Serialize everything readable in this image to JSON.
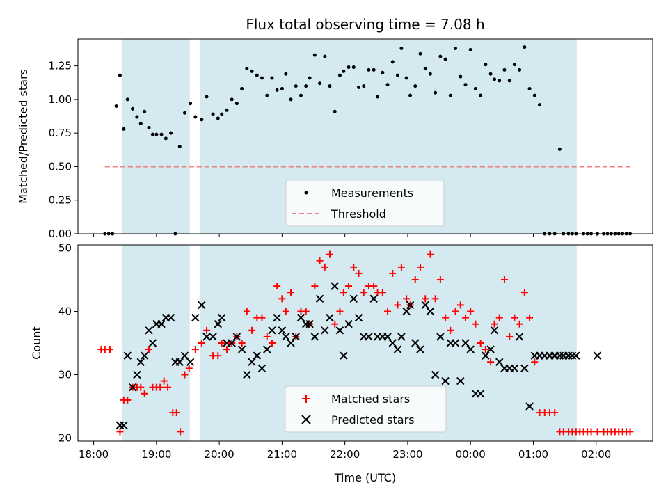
{
  "chart_data": [
    {
      "type": "scatter",
      "title": "Flux total observing time = 7.08 h",
      "xlabel": "",
      "ylabel": "Matched/Predicted stars",
      "xlim": [
        -0.25,
        8.9
      ],
      "ylim": [
        0,
        1.45
      ],
      "yticks": [
        0.0,
        0.25,
        0.5,
        0.75,
        1.0,
        1.25
      ],
      "ytick_labels": [
        "0.00",
        "0.25",
        "0.50",
        "0.75",
        "1.00",
        "1.25"
      ],
      "grid": false,
      "legend_placement": "lower center",
      "highlight_spans": [
        [
          0.45,
          1.53
        ],
        [
          1.69,
          7.69
        ]
      ],
      "highlight_color": "#d4eaf0",
      "series": [
        {
          "name": "Measurements",
          "kind": "dot",
          "color": "#000000",
          "x": [
            0.18,
            0.24,
            0.3,
            0.36,
            0.42,
            0.48,
            0.54,
            0.62,
            0.69,
            0.75,
            0.81,
            0.88,
            0.94,
            1.0,
            1.08,
            1.15,
            1.23,
            1.3,
            1.37,
            1.45,
            1.54,
            1.62,
            1.72,
            1.8,
            1.9,
            1.98,
            2.04,
            2.12,
            2.2,
            2.28,
            2.36,
            2.44,
            2.52,
            2.6,
            2.68,
            2.76,
            2.84,
            2.92,
            3.0,
            3.06,
            3.14,
            3.22,
            3.3,
            3.38,
            3.44,
            3.52,
            3.6,
            3.68,
            3.76,
            3.84,
            3.92,
            3.98,
            4.06,
            4.14,
            4.22,
            4.3,
            4.38,
            4.46,
            4.52,
            4.6,
            4.68,
            4.76,
            4.84,
            4.9,
            4.98,
            5.04,
            5.12,
            5.2,
            5.28,
            5.36,
            5.44,
            5.52,
            5.6,
            5.68,
            5.76,
            5.84,
            5.92,
            6.0,
            6.08,
            6.16,
            6.24,
            6.32,
            6.38,
            6.46,
            6.54,
            6.62,
            6.7,
            6.78,
            6.86,
            6.94,
            7.02,
            7.1,
            7.18,
            7.26,
            7.34,
            7.42,
            7.48,
            7.56,
            7.62,
            7.68,
            7.8,
            7.86,
            7.92,
            8.02,
            8.12,
            8.18,
            8.24,
            8.3,
            8.36,
            8.42,
            8.48,
            8.54
          ],
          "y": [
            0.0,
            0.0,
            0.0,
            0.95,
            1.18,
            0.78,
            1.0,
            0.93,
            0.87,
            0.82,
            0.91,
            0.79,
            0.74,
            0.74,
            0.74,
            0.71,
            0.75,
            0.0,
            0.65,
            0.9,
            0.97,
            0.87,
            0.85,
            1.02,
            0.89,
            0.86,
            0.89,
            0.92,
            1.0,
            0.97,
            1.08,
            1.23,
            1.21,
            1.18,
            1.16,
            1.03,
            1.16,
            1.07,
            1.08,
            1.19,
            1.0,
            1.1,
            1.03,
            1.1,
            1.16,
            1.33,
            1.12,
            1.32,
            1.1,
            0.91,
            1.18,
            1.21,
            1.24,
            1.24,
            1.09,
            1.1,
            1.22,
            1.22,
            1.02,
            1.2,
            1.11,
            1.28,
            1.18,
            1.38,
            1.16,
            1.03,
            1.1,
            1.34,
            1.23,
            1.19,
            1.05,
            1.32,
            1.3,
            1.03,
            1.38,
            1.17,
            1.11,
            1.37,
            1.08,
            1.03,
            1.26,
            1.19,
            1.15,
            1.14,
            1.22,
            1.14,
            1.26,
            1.22,
            1.39,
            1.08,
            1.03,
            0.96,
            0.0,
            0.0,
            0.0,
            0.63,
            0.0,
            0.0,
            0.0,
            0.0,
            0.0,
            0.0,
            0.0,
            0.0,
            0.0,
            0.0,
            0.0,
            0.0,
            0.0,
            0.0,
            0.0,
            0.0
          ]
        },
        {
          "name": "Threshold",
          "kind": "dashed-line",
          "color": "#f08080",
          "x": [
            0.18,
            8.54
          ],
          "y": [
            0.5,
            0.5
          ]
        }
      ]
    },
    {
      "type": "scatter",
      "title": "",
      "xlabel": "Time (UTC)",
      "ylabel": "Count",
      "xlim": [
        -0.25,
        8.9
      ],
      "ylim": [
        19.5,
        50.5
      ],
      "yticks": [
        20,
        30,
        40,
        50
      ],
      "ytick_labels": [
        "20",
        "30",
        "40",
        "50"
      ],
      "xticks": [
        0,
        1,
        2,
        3,
        4,
        5,
        6,
        7,
        8
      ],
      "xtick_labels": [
        "18:00",
        "19:00",
        "20:00",
        "21:00",
        "22:00",
        "23:00",
        "00:00",
        "01:00",
        "02:00"
      ],
      "grid": false,
      "legend_placement": "lower center",
      "highlight_spans": [
        [
          0.45,
          1.53
        ],
        [
          1.69,
          7.69
        ]
      ],
      "highlight_color": "#d4eaf0",
      "series": [
        {
          "name": "Matched stars",
          "kind": "plus",
          "color": "#ff0000",
          "x": [
            0.12,
            0.18,
            0.26,
            0.42,
            0.48,
            0.54,
            0.62,
            0.69,
            0.75,
            0.81,
            0.88,
            0.94,
            1.0,
            1.06,
            1.12,
            1.18,
            1.26,
            1.32,
            1.38,
            1.45,
            1.52,
            1.62,
            1.72,
            1.8,
            1.9,
            1.98,
            2.04,
            2.12,
            2.2,
            2.28,
            2.36,
            2.44,
            2.52,
            2.6,
            2.68,
            2.76,
            2.84,
            2.92,
            3.0,
            3.06,
            3.14,
            3.22,
            3.3,
            3.38,
            3.44,
            3.52,
            3.6,
            3.68,
            3.76,
            3.84,
            3.92,
            3.98,
            4.06,
            4.14,
            4.22,
            4.3,
            4.38,
            4.46,
            4.52,
            4.6,
            4.68,
            4.76,
            4.84,
            4.9,
            4.98,
            5.04,
            5.12,
            5.2,
            5.28,
            5.36,
            5.44,
            5.52,
            5.6,
            5.68,
            5.76,
            5.84,
            5.92,
            6.0,
            6.08,
            6.16,
            6.24,
            6.32,
            6.38,
            6.46,
            6.54,
            6.62,
            6.7,
            6.78,
            6.86,
            6.94,
            7.02,
            7.1,
            7.18,
            7.26,
            7.34,
            7.42,
            7.48,
            7.56,
            7.62,
            7.68,
            7.74,
            7.8,
            7.86,
            7.92,
            8.02,
            8.12,
            8.18,
            8.24,
            8.3,
            8.36,
            8.42,
            8.48,
            8.54
          ],
          "y": [
            34,
            34,
            34,
            21,
            26,
            26,
            28,
            28,
            28,
            27,
            34,
            28,
            28,
            28,
            29,
            28,
            24,
            24,
            21,
            30,
            31,
            34,
            35,
            37,
            33,
            33,
            35,
            34,
            35,
            36,
            35,
            40,
            37,
            39,
            39,
            36,
            35,
            44,
            42,
            40,
            43,
            36,
            40,
            40,
            38,
            44,
            48,
            47,
            49,
            38,
            40,
            43,
            44,
            47,
            46,
            43,
            44,
            44,
            43,
            43,
            40,
            46,
            41,
            47,
            42,
            41,
            45,
            47,
            42,
            49,
            42,
            45,
            39,
            37,
            40,
            41,
            39,
            40,
            38,
            35,
            34,
            32,
            38,
            39,
            45,
            36,
            39,
            38,
            43,
            39,
            32,
            24,
            24,
            24,
            24,
            21,
            21,
            21,
            21,
            21,
            21,
            21,
            21,
            21,
            21,
            21,
            21,
            21,
            21,
            21,
            21,
            21,
            21
          ],
          "_note": ""
        },
        {
          "name": "Predicted stars",
          "kind": "x",
          "color": "#000000",
          "x": [
            0.42,
            0.48,
            0.54,
            0.62,
            0.69,
            0.75,
            0.81,
            0.88,
            0.94,
            1.0,
            1.08,
            1.15,
            1.23,
            1.3,
            1.37,
            1.45,
            1.54,
            1.62,
            1.72,
            1.8,
            1.9,
            1.98,
            2.04,
            2.12,
            2.2,
            2.28,
            2.36,
            2.44,
            2.52,
            2.6,
            2.68,
            2.76,
            2.84,
            2.92,
            3.0,
            3.06,
            3.14,
            3.22,
            3.3,
            3.38,
            3.44,
            3.52,
            3.6,
            3.68,
            3.76,
            3.84,
            3.92,
            3.98,
            4.06,
            4.14,
            4.22,
            4.3,
            4.38,
            4.46,
            4.52,
            4.6,
            4.68,
            4.76,
            4.84,
            4.9,
            4.98,
            5.04,
            5.12,
            5.2,
            5.28,
            5.36,
            5.44,
            5.52,
            5.6,
            5.68,
            5.76,
            5.84,
            5.92,
            6.0,
            6.08,
            6.16,
            6.24,
            6.32,
            6.38,
            6.46,
            6.54,
            6.62,
            6.7,
            6.78,
            6.86,
            6.94,
            7.02,
            7.1,
            7.18,
            7.26,
            7.34,
            7.42,
            7.48,
            7.56,
            7.62,
            7.68,
            8.02
          ],
          "y": [
            22,
            22,
            33,
            28,
            30,
            32,
            33,
            37,
            35,
            38,
            38,
            39,
            39,
            32,
            32,
            33,
            32,
            39,
            41,
            36,
            36,
            38,
            39,
            35,
            35,
            36,
            34,
            30,
            32,
            33,
            31,
            34,
            37,
            39,
            37,
            36,
            35,
            36,
            39,
            38,
            38,
            36,
            42,
            37,
            39,
            44,
            37,
            33,
            38,
            42,
            39,
            36,
            36,
            42,
            36,
            36,
            36,
            35,
            34,
            36,
            40,
            41,
            35,
            34,
            41,
            40,
            30,
            36,
            29,
            35,
            35,
            29,
            35,
            34,
            27,
            27,
            33,
            34,
            37,
            32,
            31,
            31,
            31,
            36,
            31,
            25,
            33,
            33,
            33,
            33,
            33,
            33,
            33,
            33,
            33,
            33,
            33
          ]
        }
      ]
    }
  ]
}
